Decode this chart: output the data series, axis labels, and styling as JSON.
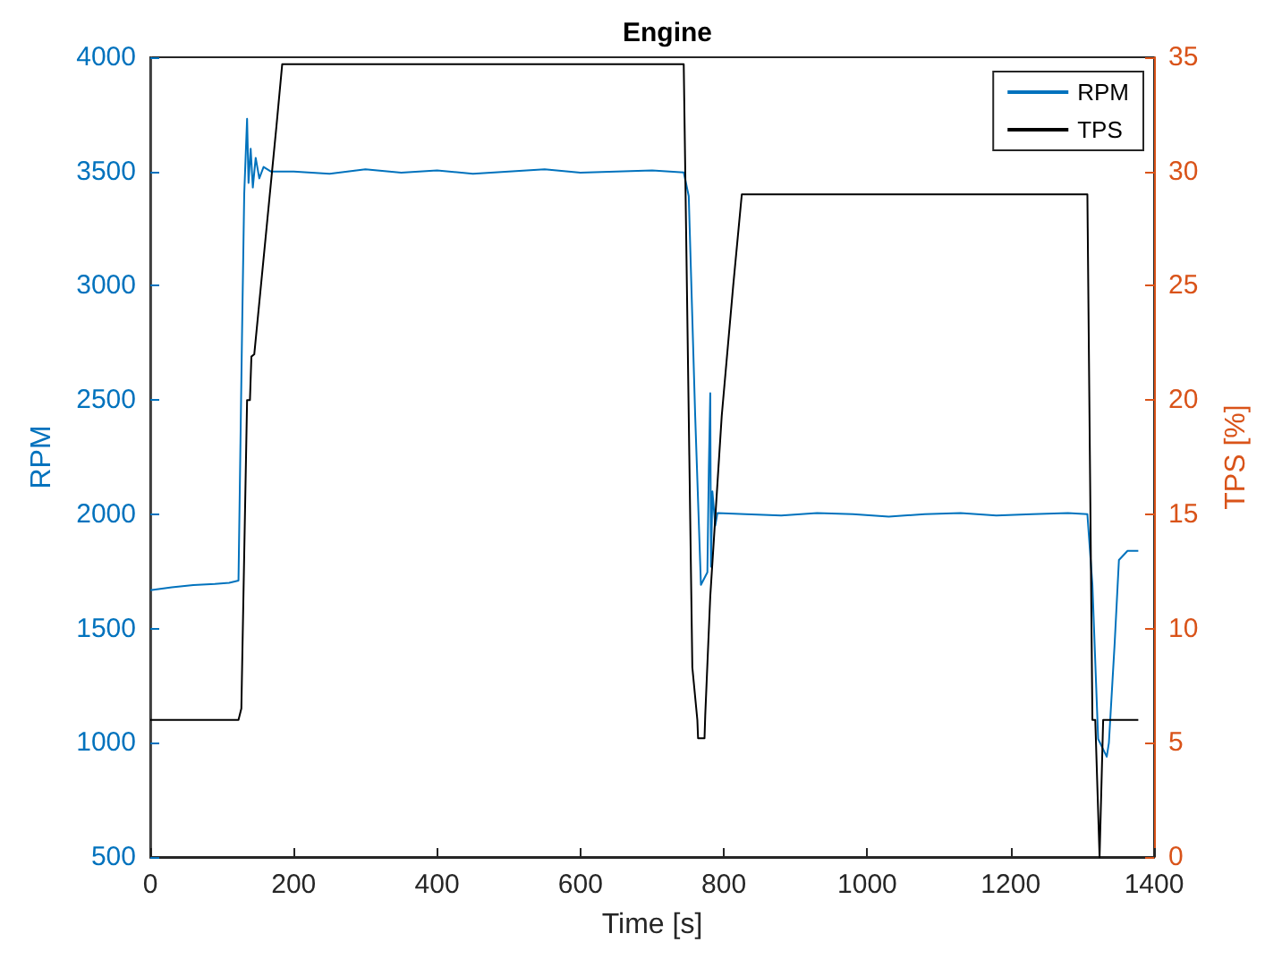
{
  "chart_data": {
    "type": "line",
    "title": "Engine",
    "xlabel": "Time [s]",
    "ylabel": "RPM",
    "y2label": "TPS [%]",
    "xlim": [
      0,
      1400
    ],
    "xticks": [
      0,
      200,
      400,
      600,
      800,
      1000,
      1200,
      1400
    ],
    "ylim": [
      500,
      4000
    ],
    "yticks": [
      500,
      1000,
      1500,
      2000,
      2500,
      3000,
      3500,
      4000
    ],
    "y2lim": [
      0,
      35
    ],
    "y2ticks": [
      0,
      5,
      10,
      15,
      20,
      25,
      30,
      35
    ],
    "legend": "top right",
    "grid": false,
    "marker": "none",
    "line_style": "solid",
    "series": [
      {
        "name": "RPM",
        "color": "#0072bd",
        "x": [
          0,
          30,
          60,
          90,
          110,
          123,
          128,
          131,
          135,
          137,
          140,
          143,
          147,
          152,
          158,
          168,
          200,
          250,
          300,
          350,
          400,
          450,
          500,
          550,
          600,
          650,
          700,
          744,
          751,
          760,
          768,
          777,
          779,
          781,
          782,
          784,
          788,
          791,
          830,
          880,
          930,
          980,
          1030,
          1080,
          1130,
          1180,
          1230,
          1280,
          1307,
          1314,
          1322,
          1334,
          1337,
          1345,
          1351,
          1363,
          1378
        ],
        "values": [
          1668,
          1680,
          1690,
          1695,
          1700,
          1710,
          2800,
          3400,
          3731,
          3450,
          3600,
          3430,
          3560,
          3470,
          3520,
          3500,
          3500,
          3490,
          3510,
          3495,
          3505,
          3490,
          3500,
          3510,
          3495,
          3500,
          3505,
          3496,
          3392,
          2428,
          1691,
          1746,
          2200,
          2530,
          1770,
          2100,
          1950,
          2005,
          2000,
          1995,
          2005,
          2000,
          1990,
          2000,
          2005,
          1995,
          2000,
          2005,
          2000,
          1691,
          1017,
          939,
          1000,
          1433,
          1800,
          1840,
          1840
        ]
      },
      {
        "name": "TPS",
        "color": "#000000",
        "axis": "y2",
        "x": [
          0,
          123,
          127,
          135,
          139,
          141,
          145,
          176,
          184,
          744,
          756,
          763,
          764,
          773,
          774,
          781,
          797,
          813,
          825,
          1307,
          1314,
          1318,
          1324,
          1329,
          1378
        ],
        "values": [
          6,
          6,
          6.5,
          20,
          20,
          21.9,
          22,
          32,
          34.7,
          34.7,
          8.3,
          6,
          5.2,
          5.2,
          6.2,
          11.4,
          19.3,
          25,
          29,
          29,
          6,
          6,
          0,
          6,
          6
        ]
      }
    ]
  }
}
